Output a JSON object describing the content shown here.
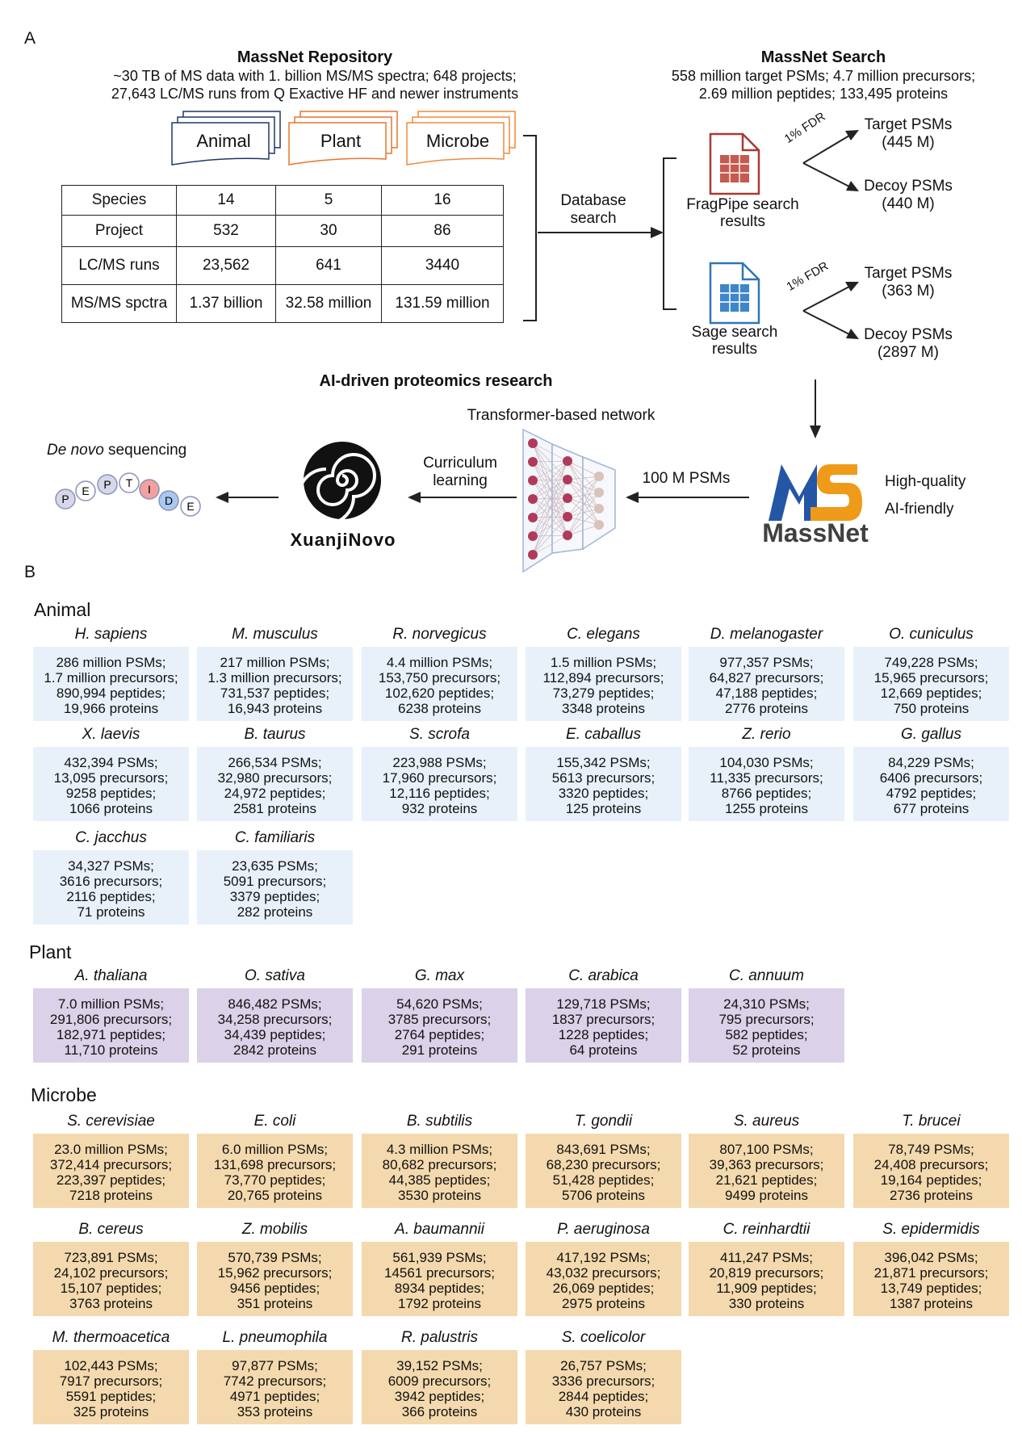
{
  "panelA": {
    "letter": "A",
    "repository": {
      "title": "MassNet Repository",
      "line1": "~30 TB of MS data with 1. billion MS/MS spectra; 648 projects;",
      "line2": "27,643 LC/MS runs from Q Exactive HF and newer instruments"
    },
    "kingdoms": [
      "Animal",
      "Plant",
      "Microbe"
    ],
    "table": {
      "rows": [
        {
          "label": "Species",
          "values": [
            "14",
            "5",
            "16"
          ]
        },
        {
          "label": "Project",
          "values": [
            "532",
            "30",
            "86"
          ]
        },
        {
          "label": "LC/MS runs",
          "values": [
            "23,562",
            "641",
            "3440"
          ]
        },
        {
          "label": "MS/MS spctra",
          "values": [
            "1.37 billion",
            "32.58 million",
            "131.59 million"
          ]
        }
      ]
    },
    "database_search": {
      "line1": "Database",
      "line2": "search"
    },
    "search": {
      "title": "MassNet Search",
      "line1": "558 million target PSMs; 4.7 million precursors;",
      "line2": "2.69 million peptides; 133,495 proteins"
    },
    "fragpipe": {
      "label1": "FragPipe search",
      "label2": "results",
      "fdr": "1% FDR",
      "target1": "Target PSMs",
      "target2": "(445 M)",
      "decoy1": "Decoy PSMs",
      "decoy2": "(440 M)"
    },
    "sage": {
      "label1": "Sage search",
      "label2": "results",
      "fdr": "1% FDR",
      "target1": "Target PSMs",
      "target2": "(363 M)",
      "decoy1": "Decoy PSMs",
      "decoy2": "(2897 M)"
    },
    "ai": {
      "title": "AI-driven proteomics research",
      "network": "Transformer-based network",
      "psms": "100 M PSMs",
      "curriculum1": "Curriculum",
      "curriculum2": "learning",
      "denovo_italic": "De novo",
      "denovo_rest": " sequencing",
      "xuanji": "XuanjiNovo",
      "massnet": "MassNet",
      "hq1": "High-quality",
      "hq2": "AI-friendly",
      "peptide_letters": [
        "P",
        "E",
        "P",
        "T",
        "I",
        "D",
        "E"
      ]
    },
    "colors": {
      "animal": "#1f3864",
      "plant": "#e8742c",
      "microbe": "#f08a3c",
      "fragpipe": "#a83a36",
      "sage": "#2e76b8",
      "massnet_blue": "#2456a6",
      "massnet_orange": "#f09a1a"
    }
  },
  "panelB": {
    "letter": "B",
    "groups": [
      {
        "name": "Animal",
        "species": [
          {
            "name": "H. sapiens",
            "lines": [
              "286 million PSMs;",
              "1.7 million precursors;",
              "890,994 peptides;",
              "19,966 proteins"
            ]
          },
          {
            "name": "M. musculus",
            "lines": [
              "217 million PSMs;",
              "1.3 million precursors;",
              "731,537 peptides;",
              "16,943 proteins"
            ]
          },
          {
            "name": "R. norvegicus",
            "lines": [
              "4.4 million PSMs;",
              "153,750 precursors;",
              "102,620 peptides;",
              "6238 proteins"
            ]
          },
          {
            "name": "C. elegans",
            "lines": [
              "1.5 million PSMs;",
              "112,894 precursors;",
              "73,279 peptides;",
              "3348 proteins"
            ]
          },
          {
            "name": "D. melanogaster",
            "lines": [
              "977,357 PSMs;",
              "64,827 precursors;",
              "47,188 peptides;",
              "2776 proteins"
            ]
          },
          {
            "name": "O. cuniculus",
            "lines": [
              "749,228 PSMs;",
              "15,965 precursors;",
              "12,669 peptides;",
              "750 proteins"
            ]
          },
          {
            "name": "X. laevis",
            "lines": [
              "432,394 PSMs;",
              "13,095 precursors;",
              "9258 peptides;",
              "1066 proteins"
            ]
          },
          {
            "name": "B. taurus",
            "lines": [
              "266,534 PSMs;",
              "32,980 precursors;",
              "24,972 peptides;",
              "2581 proteins"
            ]
          },
          {
            "name": "S. scrofa",
            "lines": [
              "223,988 PSMs;",
              "17,960 precursors;",
              "12,116 peptides;",
              "932 proteins"
            ]
          },
          {
            "name": "E. caballus",
            "lines": [
              "155,342 PSMs;",
              "5613 precursors;",
              "3320 peptides;",
              "125 proteins"
            ]
          },
          {
            "name": "Z. rerio",
            "lines": [
              "104,030 PSMs;",
              "11,335 precursors;",
              "8766 peptides;",
              "1255 proteins"
            ]
          },
          {
            "name": "G. gallus",
            "lines": [
              "84,229 PSMs;",
              "6406 precursors;",
              "4792 peptides;",
              "677 proteins"
            ]
          },
          {
            "name": "C. jacchus",
            "lines": [
              "34,327 PSMs;",
              "3616 precursors;",
              "2116 peptides;",
              "71 proteins"
            ]
          },
          {
            "name": "C. familiaris",
            "lines": [
              "23,635 PSMs;",
              "5091 precursors;",
              "3379 peptides;",
              "282 proteins"
            ]
          }
        ]
      },
      {
        "name": "Plant",
        "species": [
          {
            "name": "A. thaliana",
            "lines": [
              "7.0 million PSMs;",
              "291,806 precursors;",
              "182,971 peptides;",
              "11,710 proteins"
            ]
          },
          {
            "name": "O. sativa",
            "lines": [
              "846,482 PSMs;",
              "34,258 precursors;",
              "34,439 peptides;",
              "2842 proteins"
            ]
          },
          {
            "name": "G. max",
            "lines": [
              "54,620 PSMs;",
              "3785 precursors;",
              "2764 peptides;",
              "291 proteins"
            ]
          },
          {
            "name": "C. arabica",
            "lines": [
              "129,718 PSMs;",
              "1837 precursors;",
              "1228 peptides;",
              "64 proteins"
            ]
          },
          {
            "name": "C. annuum",
            "lines": [
              "24,310 PSMs;",
              "795 precursors;",
              "582 peptides;",
              "52 proteins"
            ]
          }
        ]
      },
      {
        "name": "Microbe",
        "species": [
          {
            "name": "S. cerevisiae",
            "lines": [
              "23.0 million PSMs;",
              "372,414 precursors;",
              "223,397 peptides;",
              "7218 proteins"
            ]
          },
          {
            "name": "E. coli",
            "lines": [
              "6.0 million PSMs;",
              "131,698 precursors;",
              "73,770 peptides;",
              "20,765 proteins"
            ]
          },
          {
            "name": "B. subtilis",
            "lines": [
              "4.3 million PSMs;",
              "80,682 precursors;",
              "44,385 peptides;",
              "3530 proteins"
            ]
          },
          {
            "name": "T. gondii",
            "lines": [
              "843,691 PSMs;",
              "68,230 precursors;",
              "51,428 peptides;",
              "5706 proteins"
            ]
          },
          {
            "name": "S. aureus",
            "lines": [
              "807,100 PSMs;",
              "39,363 precursors;",
              "21,621 peptides;",
              "9499 proteins"
            ]
          },
          {
            "name": "T. brucei",
            "lines": [
              "78,749 PSMs;",
              "24,408 precursors;",
              "19,164 peptides;",
              "2736 proteins"
            ]
          },
          {
            "name": "B. cereus",
            "lines": [
              "723,891 PSMs;",
              "24,102 precursors;",
              "15,107 peptides;",
              "3763 proteins"
            ]
          },
          {
            "name": "Z. mobilis",
            "lines": [
              "570,739 PSMs;",
              "15,962 precursors;",
              "9456 peptides;",
              "351 proteins"
            ]
          },
          {
            "name": "A. baumannii",
            "lines": [
              "561,939 PSMs;",
              "14561 precursors;",
              "8934 peptides;",
              "1792 proteins"
            ]
          },
          {
            "name": "P. aeruginosa",
            "lines": [
              "417,192 PSMs;",
              "43,032 precursors;",
              "26,069 peptides;",
              "2975 proteins"
            ]
          },
          {
            "name": "C. reinhardtii",
            "lines": [
              "411,247 PSMs;",
              "20,819 precursors;",
              "11,909 peptides;",
              "330 proteins"
            ]
          },
          {
            "name": "S. epidermidis",
            "lines": [
              "396,042 PSMs;",
              "21,871 precursors;",
              "13,749 peptides;",
              "1387 proteins"
            ]
          },
          {
            "name": "M. thermoacetica",
            "lines": [
              "102,443 PSMs;",
              "7917 precursors;",
              "5591 peptides;",
              "325 proteins"
            ]
          },
          {
            "name": "L. pneumophila",
            "lines": [
              "97,877 PSMs;",
              "7742 precursors;",
              "4971 peptides;",
              "353 proteins"
            ]
          },
          {
            "name": "R. palustris",
            "lines": [
              "39,152 PSMs;",
              "6009 precursors;",
              "3942 peptides;",
              "366 proteins"
            ]
          },
          {
            "name": "S. coelicolor",
            "lines": [
              "26,757 PSMs;",
              "3336 precursors;",
              "2844 peptides;",
              "430 proteins"
            ]
          }
        ]
      }
    ]
  }
}
